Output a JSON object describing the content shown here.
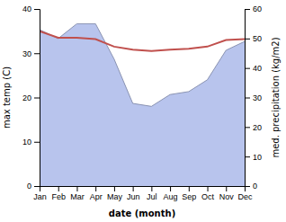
{
  "chart_data": {
    "type": "line",
    "categories": [
      "Jan",
      "Feb",
      "Mar",
      "Apr",
      "May",
      "Jun",
      "Jul",
      "Aug",
      "Sep",
      "Oct",
      "Nov",
      "Dec"
    ],
    "series": [
      {
        "type": "area",
        "axis": "y2",
        "color": "#b8c4ed",
        "values": [
          53.0,
          50.0,
          55.0,
          55.0,
          43.0,
          28.0,
          27.0,
          31.0,
          32.0,
          36.0,
          46.0,
          49.0
        ]
      },
      {
        "type": "line",
        "color": "#c0504d",
        "values": [
          35.0,
          33.5,
          33.5,
          33.2,
          31.5,
          30.8,
          30.5,
          30.8,
          31.0,
          31.5,
          33.0,
          33.2
        ]
      }
    ],
    "xlabel": "date (month)",
    "ylabel": "max temp (C)",
    "y2label": "med. precipitation (kg/m2)",
    "ylim": [
      0,
      40
    ],
    "yticks": [
      0,
      10,
      20,
      30,
      40
    ],
    "y2lim": [
      0,
      60
    ],
    "y2ticks": [
      0,
      10,
      20,
      30,
      40,
      50,
      60
    ],
    "grid": false
  }
}
